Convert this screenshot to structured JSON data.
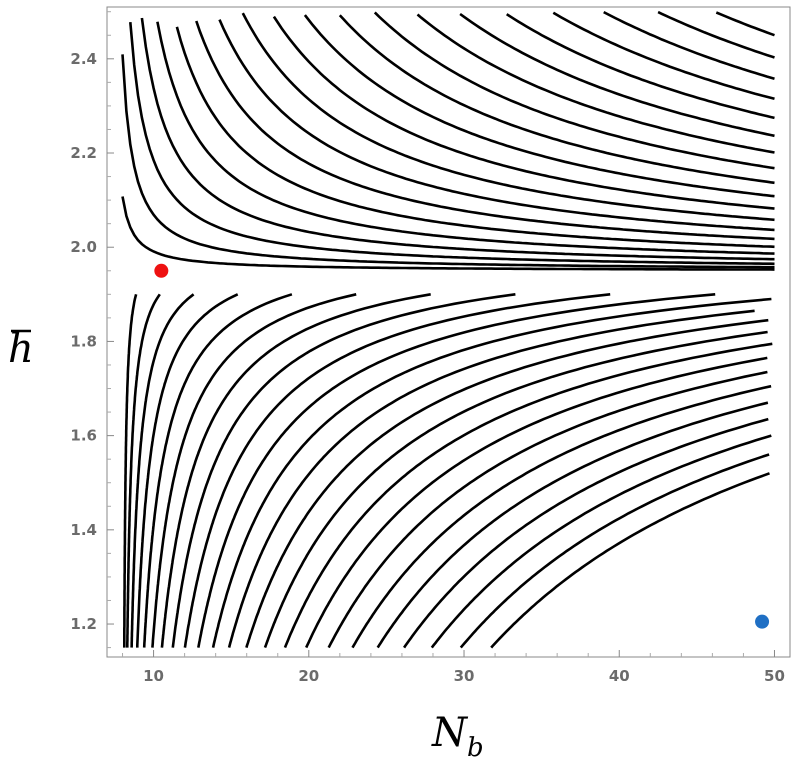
{
  "chart_data": {
    "type": "contour",
    "title": "",
    "xlabel": "N",
    "xlabel_sub": "b",
    "ylabel": "h",
    "ylabel_accent": "bar",
    "xlim": [
      7,
      51
    ],
    "ylim": [
      1.13,
      2.51
    ],
    "x_ticks": [
      10,
      20,
      30,
      40,
      50
    ],
    "y_ticks": [
      1.2,
      1.4,
      1.6,
      1.8,
      2.0,
      2.2,
      2.4
    ],
    "x_tick_labels": [
      "10",
      "20",
      "30",
      "40",
      "50"
    ],
    "y_tick_labels": [
      "1.2",
      "1.4",
      "1.6",
      "1.8",
      "2.0",
      "2.2",
      "2.4"
    ],
    "grid": false,
    "contours": {
      "description": "level sets of a saddle-shaped function with saddle point near the red point",
      "saddle_x": 10.5,
      "saddle_y": 1.95,
      "upper_level_count": 23,
      "lower_level_count": 23,
      "color": "#000000"
    },
    "points": [
      {
        "name": "red-point",
        "x": 10.5,
        "y": 1.95,
        "color": "#ee1111"
      },
      {
        "name": "blue-point",
        "x": 49.2,
        "y": 1.205,
        "color": "#1f6fc4"
      }
    ]
  }
}
